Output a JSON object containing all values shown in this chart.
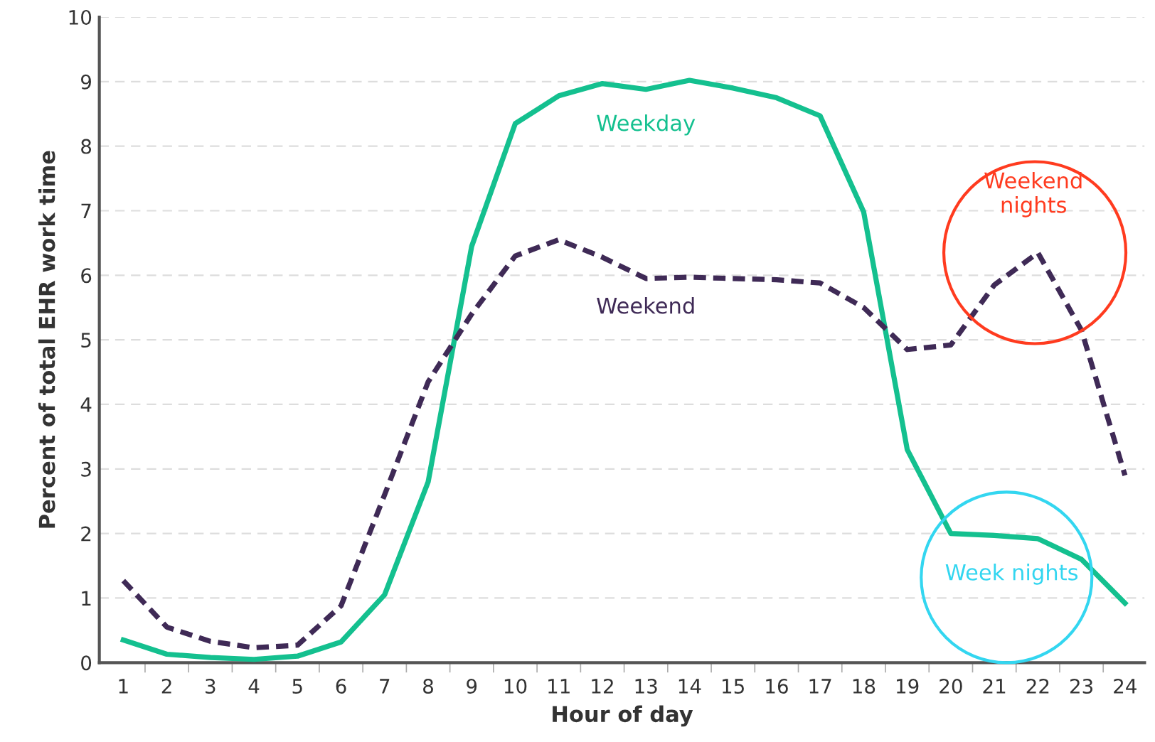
{
  "chart_data": {
    "type": "line",
    "xlabel": "Hour of day",
    "ylabel": "Percent of total EHR work time",
    "categories": [
      "1",
      "2",
      "3",
      "4",
      "5",
      "6",
      "7",
      "8",
      "9",
      "10",
      "11",
      "12",
      "13",
      "14",
      "15",
      "16",
      "17",
      "18",
      "19",
      "20",
      "21",
      "22",
      "23",
      "24"
    ],
    "series": [
      {
        "name": "Weekday",
        "color": "#14c08f",
        "line_style": "solid",
        "values": [
          0.35,
          0.13,
          0.08,
          0.05,
          0.1,
          0.32,
          1.05,
          2.8,
          6.45,
          8.35,
          8.78,
          8.97,
          8.88,
          9.02,
          8.9,
          8.75,
          8.47,
          6.98,
          3.3,
          2.0,
          1.97,
          1.92,
          1.6,
          0.92
        ]
      },
      {
        "name": "Weekend",
        "color": "#3f2a56",
        "line_style": "dashed",
        "values": [
          1.27,
          0.55,
          0.33,
          0.23,
          0.27,
          0.88,
          2.6,
          4.35,
          5.4,
          6.3,
          6.55,
          6.28,
          5.95,
          5.97,
          5.95,
          5.93,
          5.88,
          5.5,
          4.85,
          4.92,
          5.85,
          6.35,
          5.15,
          2.9
        ]
      }
    ],
    "ylim": [
      0,
      10
    ],
    "yticks": [
      0,
      1,
      2,
      3,
      4,
      5,
      6,
      7,
      8,
      9,
      10
    ],
    "grid": "y",
    "legend": false,
    "marker": "none",
    "annotations": [
      {
        "text": "Weekend\nnights",
        "x": "22",
        "y": 6.35
      },
      {
        "text": "Week nights",
        "x": "21",
        "y": 1.97
      }
    ]
  }
}
